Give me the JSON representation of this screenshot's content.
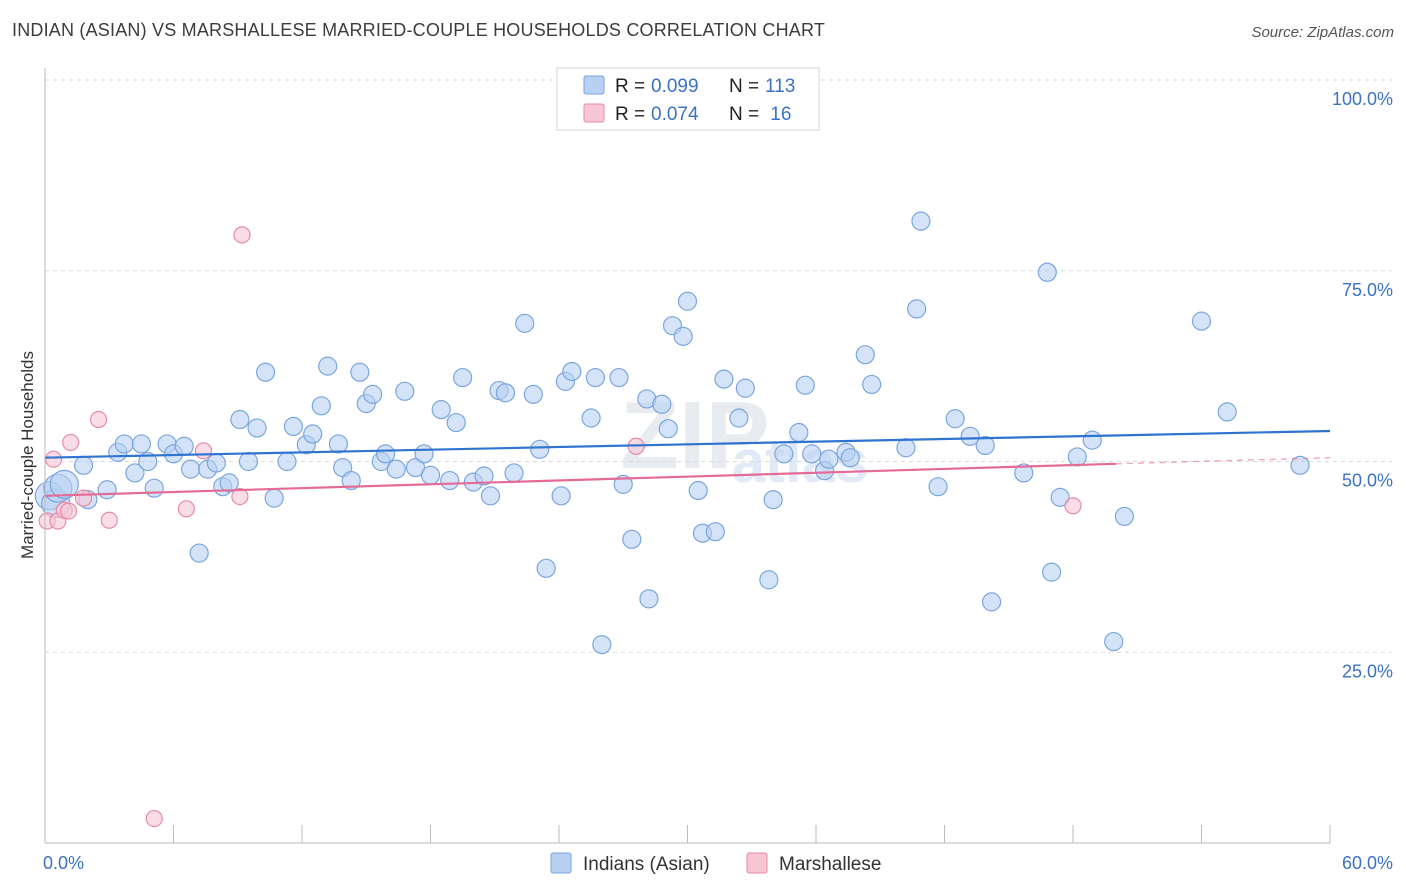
{
  "header": {
    "title": "INDIAN (ASIAN) VS MARSHALLESE MARRIED-COUPLE HOUSEHOLDS CORRELATION CHART",
    "source": "Source: ZipAtlas.com"
  },
  "watermark": {
    "zip": "ZIP",
    "atlas": "atlas"
  },
  "legend_top": [
    {
      "r_label": "R = ",
      "r_value": "0.099",
      "n_label": "N = ",
      "n_value": "113",
      "color": "#7aa6e0",
      "fill": "#b8d0f2"
    },
    {
      "r_label": "R = ",
      "r_value": "0.074",
      "n_label": "N = ",
      "n_value": " 16",
      "color": "#e88aa8",
      "fill": "#f7c6d5"
    }
  ],
  "colors": {
    "blue_line": "#2f74d0",
    "pink_line": "#e46b96",
    "value_text": "#3a72c4",
    "grid": "#d9d9d9"
  },
  "chart_data": {
    "type": "scatter",
    "title": "INDIAN (ASIAN) VS MARSHALLESE MARRIED-COUPLE HOUSEHOLDS CORRELATION CHART",
    "xlabel": "",
    "ylabel": "Married-couple Households",
    "xlim": [
      0,
      60
    ],
    "ylim": [
      0,
      100
    ],
    "x_tick_labels": [
      "0.0%",
      "60.0%"
    ],
    "y_tick_labels": [
      "100.0%",
      "75.0%",
      "50.0%",
      "25.0%"
    ],
    "y_ticks": [
      100,
      75,
      50,
      25
    ],
    "grid": true,
    "legend_position": "bottom-center",
    "series": [
      {
        "name": "Indians (Asian)",
        "color": "#7aa6e0",
        "fill": "#b8d0f2",
        "trend": [
          [
            0,
            50.5
          ],
          [
            60,
            54.0
          ]
        ],
        "points": [
          [
            0.2,
            45.5
          ],
          [
            0.5,
            44.5
          ],
          [
            0.6,
            46.5
          ],
          [
            0.9,
            47.0
          ],
          [
            1.8,
            49.5
          ],
          [
            2.0,
            45.0
          ],
          [
            2.9,
            46.3
          ],
          [
            3.4,
            51.2
          ],
          [
            3.7,
            52.3
          ],
          [
            4.2,
            48.5
          ],
          [
            4.5,
            52.3
          ],
          [
            4.8,
            50.0
          ],
          [
            5.1,
            46.5
          ],
          [
            5.7,
            52.3
          ],
          [
            6.0,
            51.0
          ],
          [
            6.5,
            52.0
          ],
          [
            6.8,
            49.0
          ],
          [
            7.2,
            38.0
          ],
          [
            7.6,
            49.0
          ],
          [
            8.0,
            49.8
          ],
          [
            8.3,
            46.7
          ],
          [
            8.6,
            47.2
          ],
          [
            9.1,
            55.5
          ],
          [
            9.5,
            50.0
          ],
          [
            9.9,
            54.4
          ],
          [
            10.3,
            61.7
          ],
          [
            10.7,
            45.2
          ],
          [
            11.3,
            50.0
          ],
          [
            11.6,
            54.6
          ],
          [
            12.2,
            52.2
          ],
          [
            12.5,
            53.6
          ],
          [
            12.9,
            57.3
          ],
          [
            13.2,
            62.5
          ],
          [
            13.7,
            52.3
          ],
          [
            13.9,
            49.2
          ],
          [
            14.3,
            47.5
          ],
          [
            14.7,
            61.7
          ],
          [
            15.0,
            57.6
          ],
          [
            15.3,
            58.8
          ],
          [
            15.7,
            50.0
          ],
          [
            15.9,
            51.0
          ],
          [
            16.4,
            49.0
          ],
          [
            16.8,
            59.2
          ],
          [
            17.3,
            49.2
          ],
          [
            17.7,
            51.0
          ],
          [
            18.0,
            48.2
          ],
          [
            18.5,
            56.8
          ],
          [
            18.9,
            47.5
          ],
          [
            19.2,
            55.1
          ],
          [
            19.5,
            61.0
          ],
          [
            20.0,
            47.3
          ],
          [
            20.5,
            48.1
          ],
          [
            20.8,
            45.5
          ],
          [
            21.2,
            59.3
          ],
          [
            21.5,
            59.0
          ],
          [
            21.9,
            48.5
          ],
          [
            22.4,
            68.1
          ],
          [
            22.8,
            58.8
          ],
          [
            23.1,
            51.6
          ],
          [
            23.4,
            36.0
          ],
          [
            24.1,
            45.5
          ],
          [
            24.3,
            60.5
          ],
          [
            24.6,
            61.8
          ],
          [
            25.5,
            55.7
          ],
          [
            25.7,
            61.0
          ],
          [
            26.0,
            26.0
          ],
          [
            26.8,
            61.0
          ],
          [
            27.0,
            47.0
          ],
          [
            27.4,
            39.8
          ],
          [
            28.1,
            58.2
          ],
          [
            28.2,
            32.0
          ],
          [
            28.8,
            57.5
          ],
          [
            29.1,
            54.3
          ],
          [
            29.3,
            67.8
          ],
          [
            29.8,
            66.4
          ],
          [
            30.0,
            71.0
          ],
          [
            30.5,
            46.2
          ],
          [
            30.7,
            40.6
          ],
          [
            31.3,
            40.8
          ],
          [
            31.7,
            60.8
          ],
          [
            32.4,
            55.7
          ],
          [
            32.7,
            59.6
          ],
          [
            33.8,
            34.5
          ],
          [
            34.0,
            45.0
          ],
          [
            34.5,
            51.0
          ],
          [
            35.2,
            53.8
          ],
          [
            35.5,
            60.0
          ],
          [
            35.8,
            51.0
          ],
          [
            36.4,
            48.8
          ],
          [
            36.6,
            50.3
          ],
          [
            37.4,
            51.2
          ],
          [
            37.6,
            50.5
          ],
          [
            38.3,
            64.0
          ],
          [
            38.6,
            60.1
          ],
          [
            40.2,
            51.8
          ],
          [
            40.7,
            70.0
          ],
          [
            40.9,
            81.5
          ],
          [
            41.7,
            46.7
          ],
          [
            42.5,
            55.6
          ],
          [
            43.2,
            53.3
          ],
          [
            43.9,
            52.1
          ],
          [
            44.2,
            31.6
          ],
          [
            45.7,
            48.5
          ],
          [
            46.8,
            74.8
          ],
          [
            47.0,
            35.5
          ],
          [
            47.4,
            45.3
          ],
          [
            48.2,
            50.6
          ],
          [
            48.9,
            52.8
          ],
          [
            49.9,
            26.4
          ],
          [
            50.4,
            42.8
          ],
          [
            54.0,
            68.4
          ],
          [
            55.2,
            56.5
          ],
          [
            58.6,
            49.5
          ]
        ]
      },
      {
        "name": "Marshallese",
        "color": "#e88aa8",
        "fill": "#f7c6d5",
        "trend": [
          [
            0,
            45.5
          ],
          [
            50,
            49.7
          ]
        ],
        "trend_dashed": [
          [
            50,
            49.7
          ],
          [
            60,
            50.5
          ]
        ],
        "points": [
          [
            0.1,
            42.2
          ],
          [
            0.4,
            50.3
          ],
          [
            0.6,
            42.2
          ],
          [
            0.9,
            43.6
          ],
          [
            1.1,
            43.5
          ],
          [
            1.2,
            52.5
          ],
          [
            1.8,
            45.2
          ],
          [
            2.5,
            55.5
          ],
          [
            3.0,
            42.3
          ],
          [
            5.1,
            3.2
          ],
          [
            6.6,
            43.8
          ],
          [
            7.4,
            51.4
          ],
          [
            9.1,
            45.4
          ],
          [
            9.2,
            79.7
          ],
          [
            27.6,
            52.0
          ],
          [
            48.0,
            44.2
          ]
        ]
      }
    ]
  }
}
